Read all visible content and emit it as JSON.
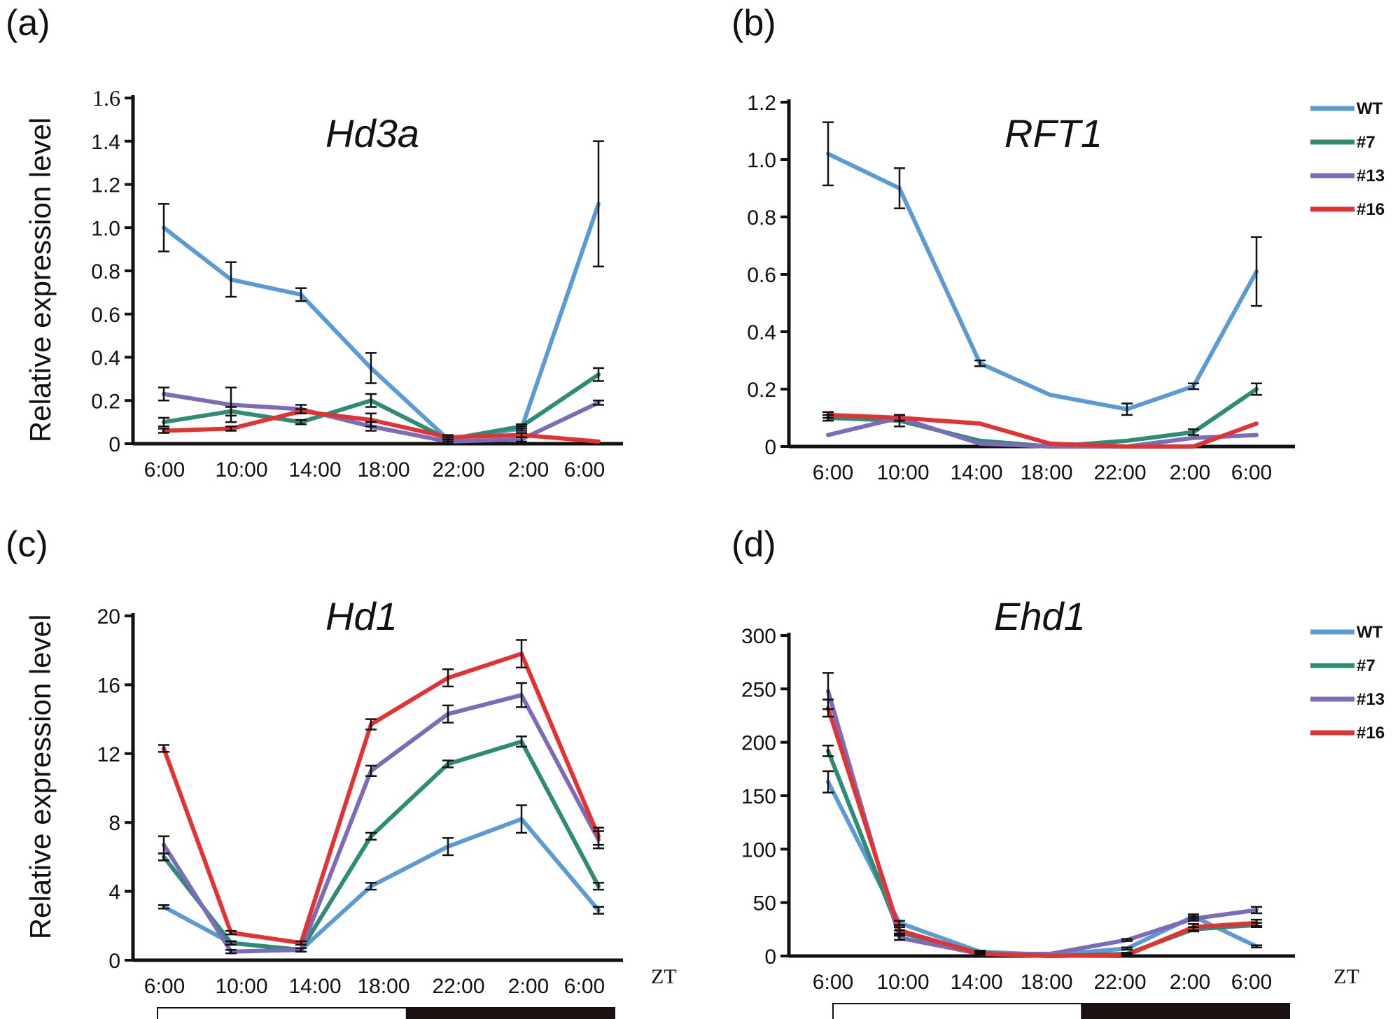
{
  "chart_data": [
    {
      "panel": "(a)",
      "type": "line",
      "title": "Hd3a",
      "ylabel": "Relative expression level",
      "xlabel": "",
      "categories": [
        "6:00",
        "10:00",
        "14:00",
        "18:00",
        "22:00",
        "2:00",
        "6:00"
      ],
      "ylim": [
        0,
        1.6
      ],
      "yticks": [
        "0",
        "0.2",
        "0.4",
        "0.6",
        "0.8",
        "1.0",
        "1.2",
        "1.4",
        "1.6"
      ],
      "series": [
        {
          "name": "WT",
          "color": "#5B9BD5",
          "values": [
            1.0,
            0.76,
            0.69,
            0.35,
            0.02,
            0.07,
            1.11
          ],
          "err": [
            0.11,
            0.08,
            0.03,
            0.07,
            0.01,
            0.01,
            0.29
          ]
        },
        {
          "name": "#7",
          "color": "#2E8B74",
          "values": [
            0.1,
            0.15,
            0.1,
            0.2,
            0.02,
            0.08,
            0.32
          ],
          "err": [
            0.02,
            0.02,
            0.01,
            0.03,
            0.01,
            0.01,
            0.03
          ]
        },
        {
          "name": "#13",
          "color": "#7B6BB8",
          "values": [
            0.23,
            0.18,
            0.16,
            0.08,
            0.01,
            0.02,
            0.19
          ],
          "err": [
            0.03,
            0.08,
            0.02,
            0.02,
            0.01,
            0.01,
            0.01
          ]
        },
        {
          "name": "#16",
          "color": "#E23232",
          "values": [
            0.06,
            0.07,
            0.15,
            0.11,
            0.03,
            0.04,
            0.01
          ],
          "err": [
            0.01,
            0.01,
            0.01,
            0.03,
            0.01,
            0.01,
            0.0
          ]
        }
      ]
    },
    {
      "panel": "(b)",
      "type": "line",
      "title": "RFT1",
      "ylabel": "",
      "xlabel": "",
      "categories": [
        "6:00",
        "10:00",
        "14:00",
        "18:00",
        "22:00",
        "2:00",
        "6:00"
      ],
      "ylim": [
        0,
        1.2
      ],
      "yticks": [
        "0",
        "0.2",
        "0.4",
        "0.6",
        "0.8",
        "1.0",
        "1.2"
      ],
      "legend": [
        "WT",
        "#7",
        "#13",
        "#16"
      ],
      "series": [
        {
          "name": "WT",
          "color": "#5B9BD5",
          "values": [
            1.02,
            0.9,
            0.29,
            0.18,
            0.13,
            0.21,
            0.61
          ],
          "err": [
            0.11,
            0.07,
            0.01,
            0.0,
            0.02,
            0.01,
            0.12
          ]
        },
        {
          "name": "#7",
          "color": "#2E8B74",
          "values": [
            0.1,
            0.09,
            0.02,
            0.0,
            0.02,
            0.05,
            0.2
          ],
          "err": [
            0.01,
            0.02,
            0.0,
            0.0,
            0.0,
            0.01,
            0.02
          ]
        },
        {
          "name": "#13",
          "color": "#7B6BB8",
          "values": [
            0.04,
            0.1,
            0.01,
            0.0,
            0.0,
            0.03,
            0.04
          ],
          "err": [
            0.0,
            0.01,
            0.0,
            0.0,
            0.0,
            0.0,
            0.0
          ]
        },
        {
          "name": "#16",
          "color": "#E23232",
          "values": [
            0.11,
            0.1,
            0.08,
            0.01,
            0.0,
            0.0,
            0.08
          ],
          "err": [
            0.01,
            0.01,
            0.0,
            0.0,
            0.0,
            0.0,
            0.0
          ]
        }
      ]
    },
    {
      "panel": "(c)",
      "type": "line",
      "title": "Hd1",
      "ylabel": "Relative expression level",
      "xlabel": "ZT",
      "categories": [
        "6:00",
        "10:00",
        "14:00",
        "18:00",
        "22:00",
        "2:00",
        "6:00"
      ],
      "ylim": [
        0,
        20
      ],
      "yticks": [
        "0",
        "4",
        "8",
        "12",
        "16",
        "20"
      ],
      "light_bar": {
        "light": [
          "6:00",
          "18:00"
        ],
        "dark": [
          "18:00",
          "6:00"
        ]
      },
      "series": [
        {
          "name": "WT",
          "color": "#5B9BD5",
          "values": [
            3.1,
            1.0,
            0.6,
            4.3,
            6.6,
            8.2,
            2.9
          ],
          "err": [
            0.1,
            0.1,
            0.1,
            0.2,
            0.5,
            0.8,
            0.2
          ]
        },
        {
          "name": "#7",
          "color": "#2E8B74",
          "values": [
            6.0,
            1.0,
            0.6,
            7.2,
            11.4,
            12.7,
            4.3
          ],
          "err": [
            0.2,
            0.1,
            0.1,
            0.2,
            0.2,
            0.3,
            0.2
          ]
        },
        {
          "name": "#13",
          "color": "#7B6BB8",
          "values": [
            6.7,
            0.5,
            0.6,
            11.0,
            14.3,
            15.4,
            7.0
          ],
          "err": [
            0.5,
            0.1,
            0.1,
            0.3,
            0.5,
            0.7,
            0.5
          ]
        },
        {
          "name": "#16",
          "color": "#E23232",
          "values": [
            12.3,
            1.6,
            1.0,
            13.7,
            16.4,
            17.8,
            7.2
          ],
          "err": [
            0.2,
            0.1,
            0.1,
            0.3,
            0.5,
            0.8,
            0.5
          ]
        }
      ]
    },
    {
      "panel": "(d)",
      "type": "line",
      "title": "Ehd1",
      "ylabel": "",
      "xlabel": "ZT",
      "categories": [
        "6:00",
        "10:00",
        "14:00",
        "18:00",
        "22:00",
        "2:00",
        "6:00"
      ],
      "ylim": [
        0,
        300
      ],
      "yticks": [
        "0",
        "50",
        "100",
        "150",
        "200",
        "250",
        "300"
      ],
      "legend": [
        "WT",
        "#7",
        "#13",
        "#16"
      ],
      "light_bar": {
        "light": [
          "6:00",
          "18:00"
        ],
        "dark": [
          "18:00",
          "6:00"
        ]
      },
      "series": [
        {
          "name": "WT",
          "color": "#5B9BD5",
          "values": [
            163,
            31,
            4,
            1,
            7,
            37,
            9
          ],
          "err": [
            10,
            2,
            1,
            0,
            1,
            2,
            1
          ]
        },
        {
          "name": "#7",
          "color": "#2E8B74",
          "values": [
            192,
            22,
            3,
            0,
            2,
            25,
            29
          ],
          "err": [
            5,
            2,
            1,
            0,
            1,
            2,
            2
          ]
        },
        {
          "name": "#13",
          "color": "#7B6BB8",
          "values": [
            248,
            17,
            2,
            2,
            15,
            35,
            43
          ],
          "err": [
            17,
            2,
            1,
            0,
            1,
            2,
            3
          ]
        },
        {
          "name": "#16",
          "color": "#E23232",
          "values": [
            232,
            24,
            2,
            0,
            1,
            27,
            31
          ],
          "err": [
            8,
            3,
            1,
            0,
            1,
            3,
            3
          ]
        }
      ]
    }
  ]
}
